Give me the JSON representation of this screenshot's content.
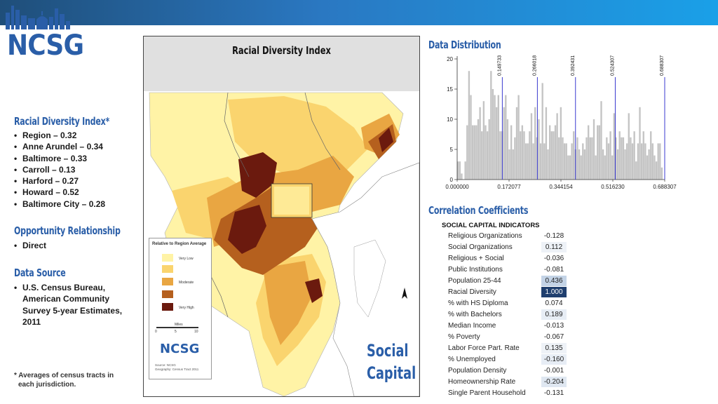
{
  "brand": {
    "logo_text": "NCSG"
  },
  "sidebar": {
    "rdi_heading": "Racial Diversity Index*",
    "rdi_items": [
      "Region – 0.32",
      "Anne Arundel – 0.34",
      "Baltimore – 0.33",
      "Carroll – 0.13",
      "Harford – 0.27",
      "Howard – 0.52",
      "Baltimore City – 0.28"
    ],
    "opp_heading": "Opportunity Relationship",
    "opp_items": [
      "Direct"
    ],
    "src_heading": "Data Source",
    "src_items": [
      "U.S. Census Bureau, American Community Survey 5-year Estimates, 2011"
    ],
    "footnote_line1": "* Averages of census tracts in",
    "footnote_line2": "each jurisdiction."
  },
  "map": {
    "title": "Racial Diversity Index",
    "legend_title": "Relative to Region Average",
    "legend_items": [
      {
        "label": "Very Low",
        "color": "#fff3a6"
      },
      {
        "label": "",
        "color": "#fad46e"
      },
      {
        "label": "Moderate",
        "color": "#e9a642"
      },
      {
        "label": "",
        "color": "#b5601e"
      },
      {
        "label": "Very High",
        "color": "#6b1a0e"
      }
    ],
    "scale_label": "Miles",
    "scale_ticks": [
      "0",
      "5",
      "10"
    ],
    "logo_text": "NCSG",
    "source_line1": "Source: NCSG",
    "source_line2": "Geography: Census Tract 2011",
    "social_line1": "Social",
    "social_line2": "Capital"
  },
  "data_distribution": {
    "heading": "Data Distribution"
  },
  "chart_data": {
    "type": "bar",
    "x_ticks": [
      "0.000000",
      "0.172077",
      "0.344154",
      "0.516230",
      "0.688307"
    ],
    "x_range": [
      0.0,
      0.688307
    ],
    "y_ticks": [
      "0",
      "5",
      "10",
      "15",
      "20"
    ],
    "ylim": [
      0,
      20
    ],
    "break_labels": [
      "0.149733",
      "0.266018",
      "0.392431",
      "0.524307",
      "0.688307"
    ],
    "break_values": [
      0.149733,
      0.266018,
      0.392431,
      0.524307,
      0.688307
    ],
    "values": [
      3,
      3,
      1,
      0,
      3,
      9,
      18,
      14,
      9,
      9,
      9,
      10,
      12,
      8,
      13,
      9,
      8,
      10,
      18,
      15,
      14,
      12,
      14,
      8,
      8,
      12,
      14,
      10,
      5,
      9,
      5,
      7,
      12,
      14,
      8,
      9,
      8,
      6,
      6,
      8,
      11,
      6,
      12,
      7,
      10,
      6,
      16,
      6,
      12,
      5,
      9,
      8,
      8,
      9,
      11,
      7,
      12,
      7,
      6,
      6,
      4,
      4,
      6,
      8,
      5,
      7,
      5,
      4,
      6,
      5,
      7,
      9,
      7,
      7,
      10,
      4,
      9,
      9,
      13,
      5,
      4,
      7,
      6,
      8,
      4,
      11,
      7,
      5,
      8,
      7,
      7,
      5,
      6,
      11,
      7,
      6,
      8,
      3,
      6,
      12,
      6,
      8,
      6,
      4,
      5,
      8,
      6,
      4,
      3,
      6,
      6,
      2,
      0
    ]
  },
  "correlation": {
    "heading": "Correlation Coefficients",
    "table_title": "SOCIAL CAPITAL INDICATORS",
    "rows": [
      {
        "label": "Religious Organizations",
        "value": "-0.128",
        "bg": "#ffffff",
        "fg": "#222222"
      },
      {
        "label": "Social Organizations",
        "value": "0.112",
        "bg": "#eef2f7",
        "fg": "#222222"
      },
      {
        "label": "Religious + Social",
        "value": "-0.036",
        "bg": "#ffffff",
        "fg": "#222222"
      },
      {
        "label": "Public Institutions",
        "value": "-0.081",
        "bg": "#ffffff",
        "fg": "#222222"
      },
      {
        "label": "Population 25-44",
        "value": "0.436",
        "bg": "#c3d3e6",
        "fg": "#222222"
      },
      {
        "label": "Racial Diversity",
        "value": "1.000",
        "bg": "#1f3f6e",
        "fg": "#ffffff"
      },
      {
        "label": "% with HS Diploma",
        "value": "0.074",
        "bg": "#ffffff",
        "fg": "#222222"
      },
      {
        "label": "% with Bachelors",
        "value": "0.189",
        "bg": "#e7edf5",
        "fg": "#222222"
      },
      {
        "label": "Median Income",
        "value": "-0.013",
        "bg": "#ffffff",
        "fg": "#222222"
      },
      {
        "label": "% Poverty",
        "value": "-0.067",
        "bg": "#ffffff",
        "fg": "#222222"
      },
      {
        "label": "Labor Force Part. Rate",
        "value": "0.135",
        "bg": "#eef2f7",
        "fg": "#222222"
      },
      {
        "label": "% Unemployed",
        "value": "-0.160",
        "bg": "#e7edf5",
        "fg": "#222222"
      },
      {
        "label": "Population Density",
        "value": "-0.001",
        "bg": "#ffffff",
        "fg": "#222222"
      },
      {
        "label": "Homeownership Rate",
        "value": "-0.204",
        "bg": "#dfe7f1",
        "fg": "#222222"
      },
      {
        "label": "Single Parent Household",
        "value": "-0.131",
        "bg": "#ffffff",
        "fg": "#222222"
      }
    ]
  }
}
